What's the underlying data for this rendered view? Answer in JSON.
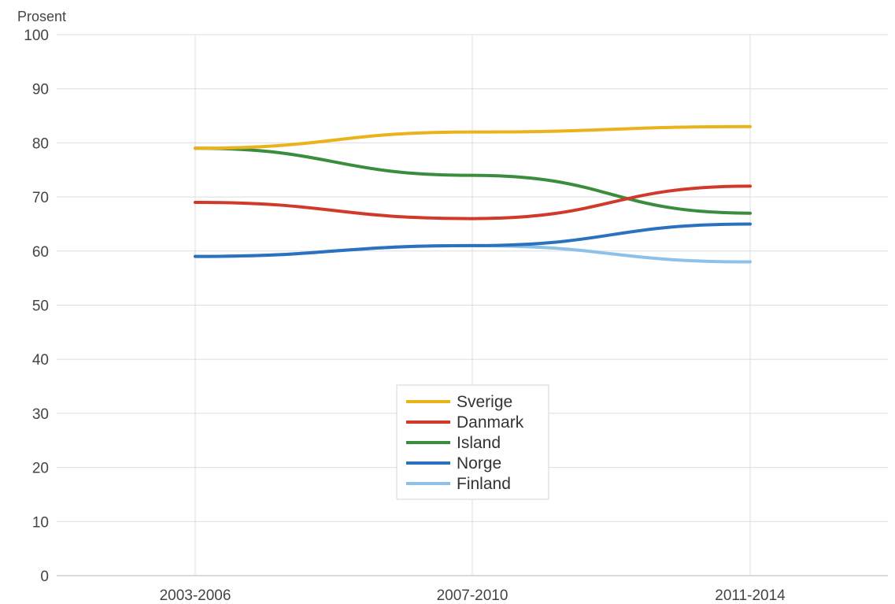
{
  "chart_data": {
    "type": "line",
    "title": "",
    "xlabel": "",
    "ylabel": "Prosent",
    "categories": [
      "2003-2006",
      "2007-2010",
      "2011-2014"
    ],
    "ylim": [
      0,
      100
    ],
    "yticks": [
      0,
      10,
      20,
      30,
      40,
      50,
      60,
      70,
      80,
      90,
      100
    ],
    "grid": true,
    "legend_position": "bottom-center",
    "series": [
      {
        "name": "Sverige",
        "color": "#e9b319",
        "values": [
          79,
          82,
          83
        ]
      },
      {
        "name": "Danmark",
        "color": "#d13a2a",
        "values": [
          69,
          66,
          72
        ]
      },
      {
        "name": "Island",
        "color": "#3a8d3c",
        "values": [
          79,
          74,
          67
        ]
      },
      {
        "name": "Norge",
        "color": "#2a72c0",
        "values": [
          59,
          61,
          65
        ]
      },
      {
        "name": "Finland",
        "color": "#8fc0e8",
        "values": [
          59,
          61,
          58
        ]
      }
    ]
  }
}
